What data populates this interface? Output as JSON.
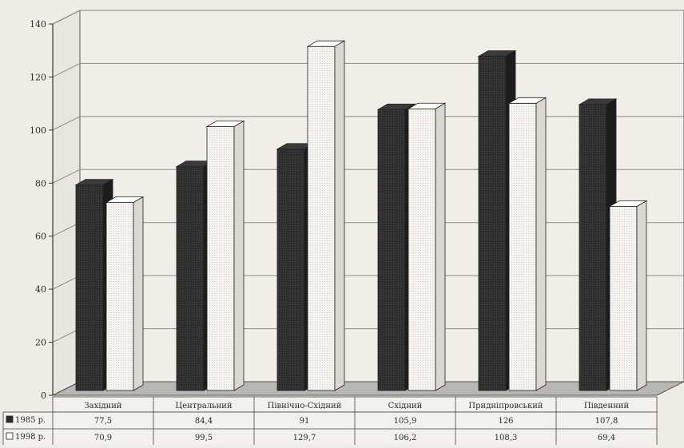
{
  "chart_data": {
    "type": "bar",
    "categories": [
      "Західний",
      "Центральний",
      "Північно-Східний",
      "Східний",
      "Придніпровський",
      "Південний"
    ],
    "series": [
      {
        "name": "1985 р.",
        "values": [
          77.5,
          84.4,
          91,
          105.9,
          126,
          107.8
        ],
        "display": [
          "77,5",
          "84,4",
          "91",
          "105,9",
          "126",
          "107,8"
        ]
      },
      {
        "name": "1998 р.",
        "values": [
          70.9,
          99.5,
          129.7,
          106.2,
          108.3,
          69.4
        ],
        "display": [
          "70,9",
          "99,5",
          "129,7",
          "106,2",
          "108,3",
          "69,4"
        ]
      }
    ],
    "yticks": [
      0,
      20,
      40,
      60,
      80,
      100,
      120,
      140
    ],
    "ylim": [
      0,
      140
    ],
    "grid": true,
    "legend": "data-table-left",
    "colors": {
      "series_1985": "#2b2b2b",
      "series_1998": "#f4f3ef",
      "grid": "#8a8a8a",
      "floor": "#b9b7b1",
      "background": "#efece6"
    }
  }
}
